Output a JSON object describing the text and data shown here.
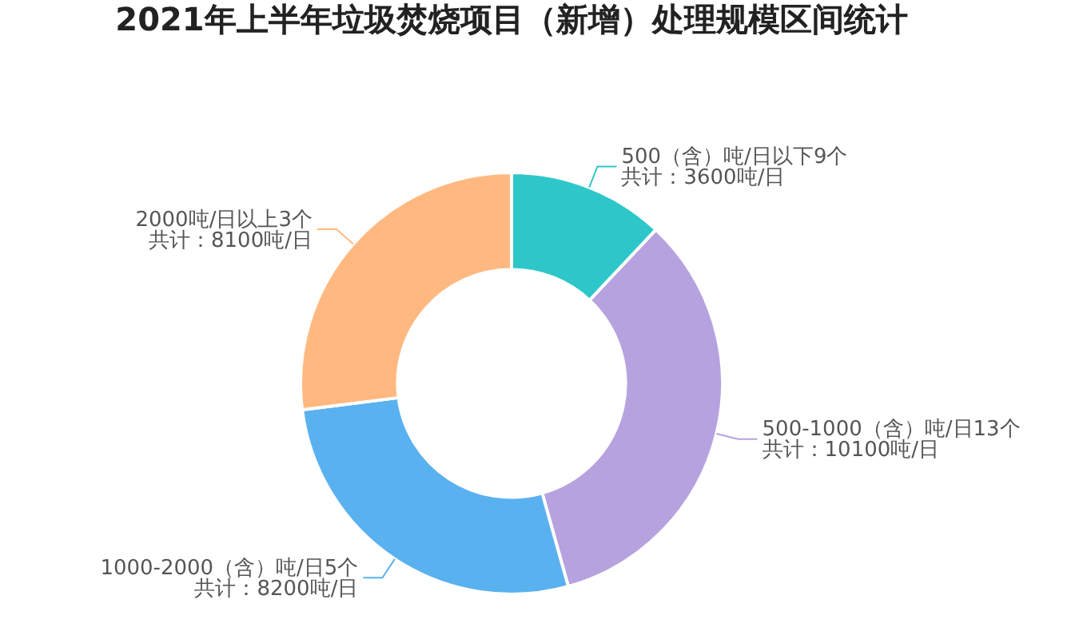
{
  "chart_data": {
    "type": "donut",
    "title": "2021年上半年垃圾焚烧项目（新增）处理规模区间统计",
    "categories": [
      "500（含）吨/日以下9个",
      "500-1000（含）吨/日13个",
      "1000-2000（含）吨/日5个",
      "2000吨/日以上3个"
    ],
    "values": [
      3600,
      10100,
      8200,
      8100
    ],
    "value_labels": [
      "共计：3600吨/日",
      "共计：10100吨/日",
      "共计：8200吨/日",
      "共计：8100吨/日"
    ],
    "colors": [
      "#2ec7c9",
      "#b6a2de",
      "#5ab1ef",
      "#ffb980"
    ],
    "legend": false
  }
}
